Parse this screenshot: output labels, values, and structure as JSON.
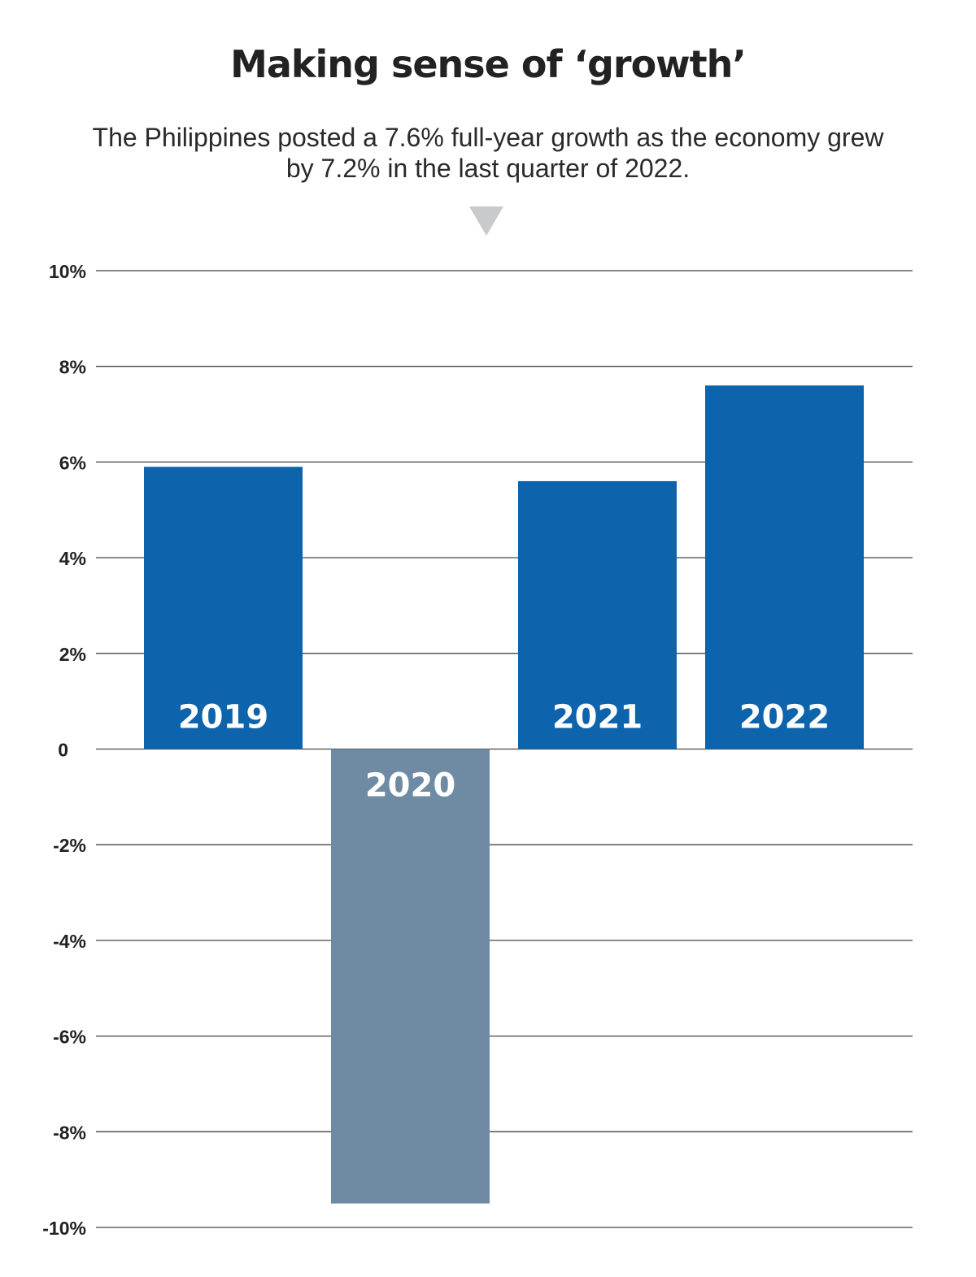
{
  "title": "Making sense of ‘growth’",
  "subtitle": "The Philippines posted a 7.6% full-year growth as the economy grew by 7.2% in the last quarter of 2022.",
  "pointer_icon": "down-triangle-icon",
  "colors": {
    "positive_bar": "#0e63ad",
    "negative_bar": "#6f8ba3",
    "gridline": "#444444",
    "pointer": "#c8cbce"
  },
  "chart_data": {
    "type": "bar",
    "title": "Making sense of ‘growth’",
    "xlabel": "",
    "ylabel": "",
    "categories": [
      "2019",
      "2020",
      "2021",
      "2022"
    ],
    "values": [
      5.9,
      -9.5,
      5.6,
      7.6
    ],
    "ylim": [
      -10,
      10
    ],
    "yticks": [
      10,
      8,
      6,
      4,
      2,
      0,
      -2,
      -4,
      -6,
      -8,
      -10
    ],
    "ytick_labels": [
      "10%",
      "8%",
      "6%",
      "4%",
      "2%",
      "0",
      "-2%",
      "-4%",
      "-6%",
      "-8%",
      "-10%"
    ],
    "grid": true,
    "legend": "none"
  }
}
